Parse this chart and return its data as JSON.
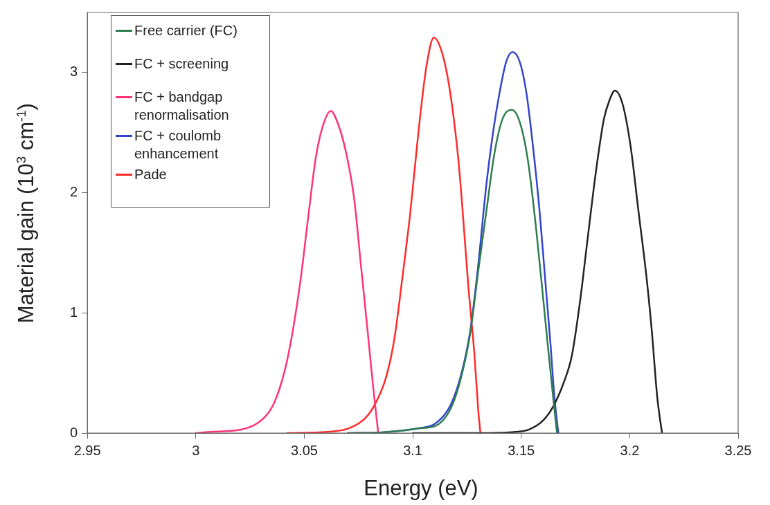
{
  "chart_data": {
    "type": "line",
    "xlabel": "Energy (eV)",
    "ylabel": "Material gain (10$^{3}$ cm$^{-1}$)",
    "xlim": [
      2.95,
      3.25
    ],
    "xticks": [
      2.95,
      3,
      3.05,
      3.1,
      3.15,
      3.2,
      3.25
    ],
    "ylim": [
      0,
      3.5
    ],
    "yticks": [
      0,
      1,
      2,
      3
    ],
    "legend": "top left",
    "marker": "none",
    "line_style": "solid",
    "series": [
      {
        "name": "Free carrier (FC)",
        "color": "#2e7d4f",
        "x": [
          3.07,
          3.085,
          3.095,
          3.103,
          3.1105,
          3.1179,
          3.1228,
          3.1265,
          3.1302,
          3.1339,
          3.1376,
          3.1413,
          3.1456,
          3.1493,
          3.153,
          3.1567,
          3.1598,
          3.1622,
          3.1647,
          3.1665
        ],
        "values": [
          0,
          0.005,
          0.02,
          0.04,
          0.06,
          0.22,
          0.5,
          0.83,
          1.35,
          1.84,
          2.32,
          2.61,
          2.69,
          2.59,
          2.28,
          1.73,
          1.18,
          0.74,
          0.3,
          0
        ]
      },
      {
        "name": "FC + screening",
        "color": "#222222",
        "x": [
          3.1,
          3.1351,
          3.1474,
          3.1536,
          3.1598,
          3.1647,
          3.1696,
          3.1733,
          3.177,
          3.1807,
          3.1844,
          3.1881,
          3.1905,
          3.1932,
          3.1967,
          3.2004,
          3.2041,
          3.2078,
          3.2102,
          3.2127,
          3.2149
        ],
        "values": [
          0,
          0,
          0.01,
          0.03,
          0.1,
          0.22,
          0.42,
          0.64,
          1.08,
          1.63,
          2.17,
          2.61,
          2.76,
          2.85,
          2.74,
          2.39,
          1.84,
          1.29,
          0.85,
          0.3,
          0
        ]
      },
      {
        "name": "FC + bandgap renormalisation",
        "color": "#ff3377",
        "x": [
          3.0,
          3.0065,
          3.0213,
          3.0311,
          3.0361,
          3.041,
          3.0447,
          3.0484,
          3.0521,
          3.0552,
          3.0583,
          3.0622,
          3.0662,
          3.0699,
          3.073,
          3.0761,
          3.0792,
          3.0816,
          3.0841
        ],
        "values": [
          0,
          0.01,
          0.03,
          0.12,
          0.25,
          0.52,
          0.85,
          1.29,
          1.84,
          2.28,
          2.54,
          2.68,
          2.54,
          2.28,
          1.95,
          1.4,
          0.85,
          0.41,
          0
        ]
      },
      {
        "name": "FC + coulomb enhancement",
        "color": "#3344cc",
        "x": [
          3.07,
          3.085,
          3.095,
          3.103,
          3.1105,
          3.1179,
          3.1228,
          3.1265,
          3.1302,
          3.1339,
          3.137,
          3.14,
          3.1431,
          3.146,
          3.1493,
          3.1524,
          3.1554,
          3.1585,
          3.161,
          3.1635,
          3.1653,
          3.1671
        ],
        "values": [
          0,
          0.005,
          0.02,
          0.04,
          0.08,
          0.25,
          0.52,
          0.85,
          1.4,
          2.06,
          2.5,
          2.83,
          3.09,
          3.17,
          3.09,
          2.83,
          2.39,
          1.84,
          1.29,
          0.74,
          0.3,
          0
        ]
      },
      {
        "name": "Pade",
        "color": "#ff2a2a",
        "x": [
          3.0422,
          3.0607,
          3.0705,
          3.0779,
          3.0829,
          3.0878,
          3.0915,
          3.0952,
          3.0989,
          3.1026,
          3.1063,
          3.1097,
          3.1136,
          3.1173,
          3.121,
          3.1235,
          3.1255,
          3.1284,
          3.1302,
          3.1312
        ],
        "values": [
          0,
          0.01,
          0.04,
          0.12,
          0.25,
          0.47,
          0.78,
          1.29,
          1.84,
          2.5,
          3.05,
          3.29,
          3.16,
          2.83,
          2.28,
          1.73,
          1.25,
          0.66,
          0.19,
          0
        ]
      }
    ]
  }
}
